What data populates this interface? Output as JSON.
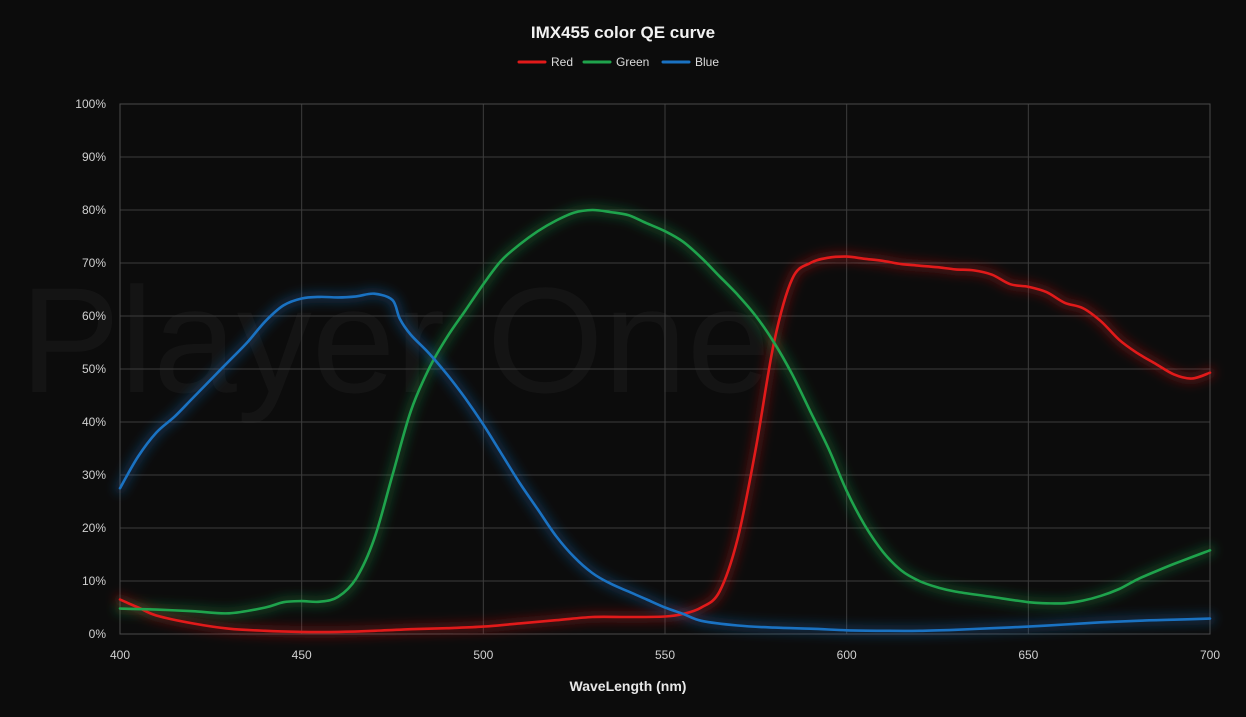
{
  "chart_data": {
    "type": "line",
    "title": "IMX455 color QE curve",
    "xlabel": "WaveLength (nm)",
    "ylabel": "",
    "watermark": "Player One",
    "xlim": [
      400,
      700
    ],
    "ylim": [
      0,
      100
    ],
    "x_ticks": [
      400,
      450,
      500,
      550,
      600,
      650,
      700
    ],
    "y_ticks": [
      0,
      10,
      20,
      30,
      40,
      50,
      60,
      70,
      80,
      90,
      100
    ],
    "x_tick_labels": [
      "400",
      "450",
      "500",
      "550",
      "600",
      "650",
      "700"
    ],
    "y_tick_labels": [
      "0%",
      "10%",
      "20%",
      "30%",
      "40%",
      "50%",
      "60%",
      "70%",
      "80%",
      "90%",
      "100%"
    ],
    "grid": true,
    "legend_position": "top-center",
    "series": [
      {
        "name": "Red",
        "color": "#e11a1a",
        "points": [
          [
            400,
            6.5
          ],
          [
            405,
            5
          ],
          [
            410,
            3.5
          ],
          [
            420,
            2
          ],
          [
            430,
            1
          ],
          [
            440,
            0.6
          ],
          [
            450,
            0.4
          ],
          [
            460,
            0.4
          ],
          [
            470,
            0.6
          ],
          [
            480,
            0.9
          ],
          [
            490,
            1.1
          ],
          [
            500,
            1.4
          ],
          [
            510,
            2
          ],
          [
            520,
            2.6
          ],
          [
            530,
            3.2
          ],
          [
            540,
            3.2
          ],
          [
            550,
            3.3
          ],
          [
            555,
            3.8
          ],
          [
            560,
            5
          ],
          [
            565,
            8
          ],
          [
            570,
            18
          ],
          [
            575,
            35
          ],
          [
            580,
            55
          ],
          [
            585,
            67
          ],
          [
            590,
            70
          ],
          [
            595,
            71
          ],
          [
            600,
            71.2
          ],
          [
            605,
            70.8
          ],
          [
            610,
            70.4
          ],
          [
            615,
            69.8
          ],
          [
            620,
            69.5
          ],
          [
            625,
            69.2
          ],
          [
            630,
            68.8
          ],
          [
            635,
            68.6
          ],
          [
            640,
            67.8
          ],
          [
            645,
            66
          ],
          [
            650,
            65.5
          ],
          [
            655,
            64.5
          ],
          [
            660,
            62.5
          ],
          [
            665,
            61.5
          ],
          [
            670,
            59
          ],
          [
            675,
            55.5
          ],
          [
            680,
            53
          ],
          [
            685,
            51
          ],
          [
            690,
            49
          ],
          [
            695,
            48.2
          ],
          [
            700,
            49.3
          ]
        ]
      },
      {
        "name": "Green",
        "color": "#1fa34c",
        "points": [
          [
            400,
            4.8
          ],
          [
            410,
            4.6
          ],
          [
            420,
            4.3
          ],
          [
            430,
            3.9
          ],
          [
            440,
            5
          ],
          [
            445,
            6
          ],
          [
            450,
            6.2
          ],
          [
            455,
            6.1
          ],
          [
            460,
            7
          ],
          [
            465,
            10.5
          ],
          [
            470,
            18
          ],
          [
            475,
            30
          ],
          [
            480,
            42
          ],
          [
            485,
            50
          ],
          [
            490,
            56
          ],
          [
            495,
            61
          ],
          [
            500,
            66
          ],
          [
            505,
            70.5
          ],
          [
            510,
            73.5
          ],
          [
            515,
            76
          ],
          [
            520,
            78
          ],
          [
            525,
            79.5
          ],
          [
            530,
            80
          ],
          [
            535,
            79.6
          ],
          [
            540,
            79
          ],
          [
            545,
            77.5
          ],
          [
            550,
            76
          ],
          [
            555,
            74
          ],
          [
            560,
            71
          ],
          [
            565,
            67.5
          ],
          [
            570,
            64
          ],
          [
            575,
            60
          ],
          [
            580,
            55
          ],
          [
            585,
            49
          ],
          [
            590,
            42
          ],
          [
            595,
            35
          ],
          [
            600,
            27
          ],
          [
            605,
            20.5
          ],
          [
            610,
            15.5
          ],
          [
            615,
            12
          ],
          [
            620,
            10
          ],
          [
            625,
            8.8
          ],
          [
            630,
            8
          ],
          [
            640,
            7
          ],
          [
            650,
            6
          ],
          [
            655,
            5.8
          ],
          [
            660,
            5.8
          ],
          [
            665,
            6.3
          ],
          [
            670,
            7.2
          ],
          [
            675,
            8.5
          ],
          [
            680,
            10.3
          ],
          [
            685,
            11.8
          ],
          [
            690,
            13.2
          ],
          [
            695,
            14.5
          ],
          [
            700,
            15.8
          ]
        ]
      },
      {
        "name": "Blue",
        "color": "#1a72c2",
        "points": [
          [
            400,
            27.5
          ],
          [
            405,
            33.5
          ],
          [
            410,
            38
          ],
          [
            415,
            41
          ],
          [
            420,
            44.5
          ],
          [
            425,
            48
          ],
          [
            430,
            51.5
          ],
          [
            435,
            55
          ],
          [
            440,
            59
          ],
          [
            445,
            62
          ],
          [
            450,
            63.3
          ],
          [
            455,
            63.6
          ],
          [
            460,
            63.5
          ],
          [
            465,
            63.7
          ],
          [
            470,
            64.2
          ],
          [
            475,
            63
          ],
          [
            477,
            59.5
          ],
          [
            480,
            56.5
          ],
          [
            485,
            53
          ],
          [
            490,
            49
          ],
          [
            495,
            44.5
          ],
          [
            500,
            39.5
          ],
          [
            505,
            34
          ],
          [
            510,
            28.5
          ],
          [
            515,
            23.5
          ],
          [
            520,
            18.5
          ],
          [
            525,
            14.5
          ],
          [
            530,
            11.5
          ],
          [
            535,
            9.5
          ],
          [
            540,
            8
          ],
          [
            545,
            6.5
          ],
          [
            550,
            5
          ],
          [
            555,
            3.8
          ],
          [
            560,
            2.5
          ],
          [
            570,
            1.6
          ],
          [
            580,
            1.2
          ],
          [
            590,
            1
          ],
          [
            600,
            0.7
          ],
          [
            610,
            0.6
          ],
          [
            620,
            0.6
          ],
          [
            630,
            0.8
          ],
          [
            640,
            1.1
          ],
          [
            650,
            1.4
          ],
          [
            660,
            1.8
          ],
          [
            670,
            2.2
          ],
          [
            680,
            2.5
          ],
          [
            690,
            2.7
          ],
          [
            700,
            2.9
          ]
        ]
      }
    ]
  }
}
